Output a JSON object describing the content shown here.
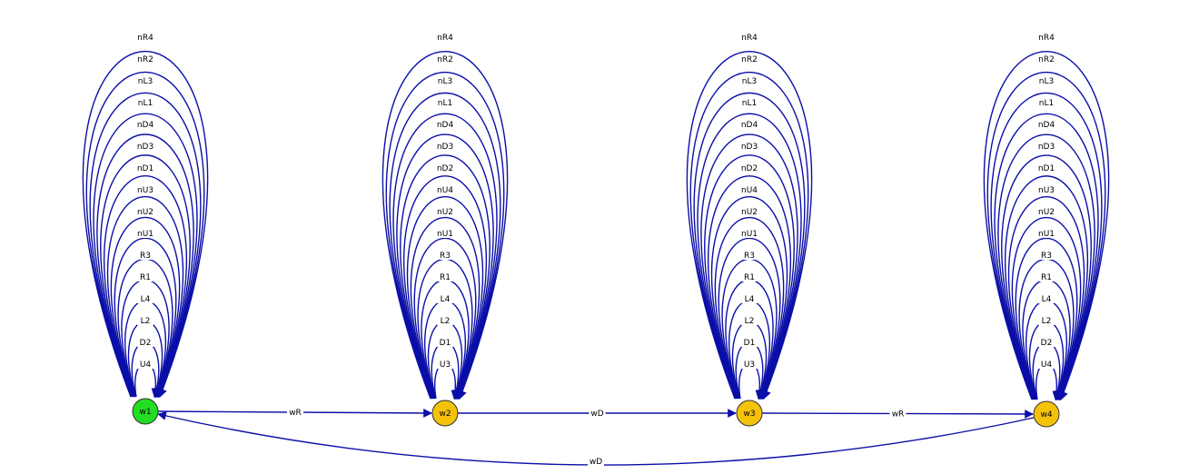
{
  "edge_color": "#0b0fa8",
  "nodes": [
    {
      "id": "w1",
      "label": "w1",
      "color": "#22dd22"
    },
    {
      "id": "w2",
      "label": "w2",
      "color": "#f5c20a"
    },
    {
      "id": "w3",
      "label": "w3",
      "color": "#f5c20a"
    },
    {
      "id": "w4",
      "label": "w4",
      "color": "#f5c20a"
    }
  ],
  "self_loops": {
    "w1": [
      "U4",
      "D2",
      "L2",
      "L4",
      "R1",
      "R3",
      "nU1",
      "nU2",
      "nU3",
      "nD1",
      "nD3",
      "nD4",
      "nL1",
      "nL3",
      "nR2",
      "nR4"
    ],
    "w2": [
      "U3",
      "D1",
      "L2",
      "L4",
      "R1",
      "R3",
      "nU1",
      "nU2",
      "nU4",
      "nD2",
      "nD3",
      "nD4",
      "nL1",
      "nL3",
      "nR2",
      "nR4"
    ],
    "w3": [
      "U3",
      "D1",
      "L2",
      "L4",
      "R1",
      "R3",
      "nU1",
      "nU2",
      "nU4",
      "nD2",
      "nD3",
      "nD4",
      "nL1",
      "nL3",
      "nR2",
      "nR4"
    ],
    "w4": [
      "U4",
      "D2",
      "L2",
      "L4",
      "R1",
      "R3",
      "nU1",
      "nU2",
      "nU3",
      "nD1",
      "nD3",
      "nD4",
      "nL1",
      "nL3",
      "nR2",
      "nR4"
    ]
  },
  "edges": [
    {
      "from": "w1",
      "to": "w2",
      "label": "wR"
    },
    {
      "from": "w2",
      "to": "w3",
      "label": "wD"
    },
    {
      "from": "w3",
      "to": "w4",
      "label": "wR"
    },
    {
      "from": "w4",
      "to": "w1",
      "label": "wD"
    }
  ]
}
